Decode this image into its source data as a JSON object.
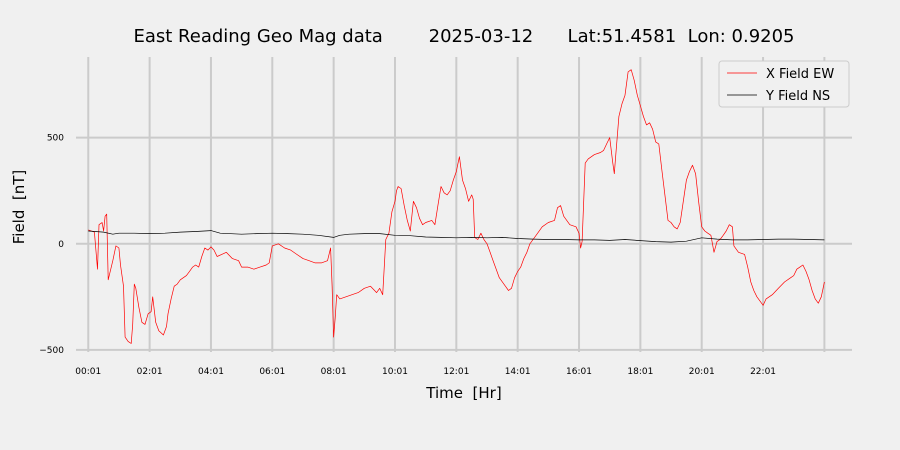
{
  "chart_data": {
    "type": "line",
    "title": "East Reading Geo Mag data        2025-03-12      Lat:51.4581  Lon: 0.9205",
    "xlabel": "Time  [Hr]",
    "ylabel": "Field  [nT]",
    "xlim": [
      -0.4,
      24.9
    ],
    "ylim": [
      -510,
      880
    ],
    "x_unit": "hours since 00:01",
    "xticks": [
      {
        "x": 0,
        "label": "00:01"
      },
      {
        "x": 2,
        "label": "02:01"
      },
      {
        "x": 4,
        "label": "04:01"
      },
      {
        "x": 6,
        "label": "06:01"
      },
      {
        "x": 8,
        "label": "08:01"
      },
      {
        "x": 10,
        "label": "10:01"
      },
      {
        "x": 12,
        "label": "12:01"
      },
      {
        "x": 14,
        "label": "14:01"
      },
      {
        "x": 16,
        "label": "16:01"
      },
      {
        "x": 18,
        "label": "18:01"
      },
      {
        "x": 20,
        "label": "20:01"
      },
      {
        "x": 22,
        "label": "22:01"
      }
    ],
    "extra_gridline_x": [
      24
    ],
    "yticks": [
      {
        "y": 500,
        "label": "500"
      },
      {
        "y": 0,
        "label": "0"
      },
      {
        "y": -500,
        "label": "−500"
      }
    ],
    "grid": true,
    "legend_position": "top-right",
    "series": [
      {
        "name": "X Field EW",
        "color": "#ff0000",
        "points": [
          [
            0.0,
            65
          ],
          [
            0.2,
            55
          ],
          [
            0.3,
            -120
          ],
          [
            0.35,
            90
          ],
          [
            0.45,
            100
          ],
          [
            0.5,
            60
          ],
          [
            0.55,
            130
          ],
          [
            0.6,
            140
          ],
          [
            0.65,
            -170
          ],
          [
            0.8,
            -80
          ],
          [
            0.9,
            -10
          ],
          [
            1.0,
            -20
          ],
          [
            1.05,
            -100
          ],
          [
            1.15,
            -200
          ],
          [
            1.2,
            -440
          ],
          [
            1.3,
            -460
          ],
          [
            1.4,
            -470
          ],
          [
            1.45,
            -380
          ],
          [
            1.5,
            -190
          ],
          [
            1.55,
            -210
          ],
          [
            1.65,
            -300
          ],
          [
            1.75,
            -370
          ],
          [
            1.85,
            -380
          ],
          [
            1.95,
            -330
          ],
          [
            2.05,
            -320
          ],
          [
            2.1,
            -250
          ],
          [
            2.2,
            -370
          ],
          [
            2.3,
            -410
          ],
          [
            2.45,
            -430
          ],
          [
            2.55,
            -390
          ],
          [
            2.6,
            -330
          ],
          [
            2.7,
            -260
          ],
          [
            2.8,
            -200
          ],
          [
            2.9,
            -190
          ],
          [
            3.0,
            -170
          ],
          [
            3.2,
            -150
          ],
          [
            3.3,
            -130
          ],
          [
            3.4,
            -110
          ],
          [
            3.5,
            -100
          ],
          [
            3.6,
            -110
          ],
          [
            3.7,
            -60
          ],
          [
            3.8,
            -20
          ],
          [
            3.9,
            -30
          ],
          [
            4.0,
            -15
          ],
          [
            4.1,
            -30
          ],
          [
            4.2,
            -60
          ],
          [
            4.35,
            -50
          ],
          [
            4.5,
            -40
          ],
          [
            4.7,
            -70
          ],
          [
            4.9,
            -80
          ],
          [
            5.0,
            -110
          ],
          [
            5.2,
            -110
          ],
          [
            5.4,
            -120
          ],
          [
            5.6,
            -110
          ],
          [
            5.8,
            -100
          ],
          [
            5.9,
            -90
          ],
          [
            6.0,
            -10
          ],
          [
            6.2,
            0
          ],
          [
            6.4,
            -20
          ],
          [
            6.6,
            -30
          ],
          [
            6.8,
            -50
          ],
          [
            7.0,
            -70
          ],
          [
            7.2,
            -80
          ],
          [
            7.4,
            -90
          ],
          [
            7.6,
            -90
          ],
          [
            7.8,
            -80
          ],
          [
            7.9,
            -20
          ],
          [
            7.95,
            -200
          ],
          [
            8.0,
            -440
          ],
          [
            8.05,
            -350
          ],
          [
            8.1,
            -240
          ],
          [
            8.2,
            -260
          ],
          [
            8.4,
            -250
          ],
          [
            8.6,
            -240
          ],
          [
            8.8,
            -230
          ],
          [
            9.0,
            -210
          ],
          [
            9.2,
            -200
          ],
          [
            9.4,
            -230
          ],
          [
            9.5,
            -210
          ],
          [
            9.6,
            -240
          ],
          [
            9.7,
            20
          ],
          [
            9.8,
            50
          ],
          [
            9.9,
            150
          ],
          [
            10.0,
            200
          ],
          [
            10.05,
            250
          ],
          [
            10.1,
            270
          ],
          [
            10.2,
            260
          ],
          [
            10.3,
            180
          ],
          [
            10.4,
            110
          ],
          [
            10.5,
            60
          ],
          [
            10.6,
            200
          ],
          [
            10.7,
            170
          ],
          [
            10.8,
            120
          ],
          [
            10.9,
            90
          ],
          [
            11.0,
            100
          ],
          [
            11.2,
            110
          ],
          [
            11.3,
            90
          ],
          [
            11.4,
            180
          ],
          [
            11.5,
            270
          ],
          [
            11.6,
            240
          ],
          [
            11.7,
            230
          ],
          [
            11.8,
            250
          ],
          [
            11.9,
            300
          ],
          [
            12.0,
            340
          ],
          [
            12.1,
            410
          ],
          [
            12.2,
            300
          ],
          [
            12.3,
            260
          ],
          [
            12.4,
            200
          ],
          [
            12.5,
            230
          ],
          [
            12.55,
            210
          ],
          [
            12.6,
            30
          ],
          [
            12.7,
            20
          ],
          [
            12.8,
            50
          ],
          [
            12.9,
            20
          ],
          [
            13.0,
            0
          ],
          [
            13.1,
            -40
          ],
          [
            13.2,
            -80
          ],
          [
            13.4,
            -160
          ],
          [
            13.6,
            -200
          ],
          [
            13.7,
            -220
          ],
          [
            13.8,
            -210
          ],
          [
            13.9,
            -160
          ],
          [
            14.0,
            -130
          ],
          [
            14.1,
            -110
          ],
          [
            14.2,
            -70
          ],
          [
            14.3,
            -40
          ],
          [
            14.4,
            0
          ],
          [
            14.6,
            40
          ],
          [
            14.8,
            80
          ],
          [
            15.0,
            100
          ],
          [
            15.2,
            110
          ],
          [
            15.3,
            170
          ],
          [
            15.4,
            180
          ],
          [
            15.5,
            130
          ],
          [
            15.7,
            90
          ],
          [
            15.9,
            80
          ],
          [
            16.0,
            50
          ],
          [
            16.05,
            -20
          ],
          [
            16.1,
            10
          ],
          [
            16.2,
            380
          ],
          [
            16.3,
            400
          ],
          [
            16.5,
            420
          ],
          [
            16.7,
            430
          ],
          [
            16.8,
            440
          ],
          [
            16.9,
            470
          ],
          [
            17.0,
            500
          ],
          [
            17.1,
            380
          ],
          [
            17.15,
            330
          ],
          [
            17.2,
            420
          ],
          [
            17.3,
            600
          ],
          [
            17.4,
            660
          ],
          [
            17.5,
            700
          ],
          [
            17.6,
            810
          ],
          [
            17.7,
            820
          ],
          [
            17.8,
            770
          ],
          [
            17.9,
            700
          ],
          [
            18.0,
            650
          ],
          [
            18.1,
            600
          ],
          [
            18.2,
            560
          ],
          [
            18.3,
            570
          ],
          [
            18.4,
            540
          ],
          [
            18.5,
            480
          ],
          [
            18.6,
            470
          ],
          [
            18.7,
            350
          ],
          [
            18.8,
            230
          ],
          [
            18.9,
            110
          ],
          [
            19.0,
            100
          ],
          [
            19.1,
            80
          ],
          [
            19.2,
            70
          ],
          [
            19.3,
            100
          ],
          [
            19.4,
            200
          ],
          [
            19.5,
            300
          ],
          [
            19.6,
            340
          ],
          [
            19.7,
            370
          ],
          [
            19.8,
            330
          ],
          [
            19.9,
            200
          ],
          [
            20.0,
            80
          ],
          [
            20.1,
            60
          ],
          [
            20.2,
            50
          ],
          [
            20.3,
            40
          ],
          [
            20.4,
            -40
          ],
          [
            20.5,
            10
          ],
          [
            20.6,
            20
          ],
          [
            20.7,
            40
          ],
          [
            20.8,
            60
          ],
          [
            20.9,
            90
          ],
          [
            21.0,
            80
          ],
          [
            21.05,
            -10
          ],
          [
            21.2,
            -40
          ],
          [
            21.4,
            -50
          ],
          [
            21.5,
            -110
          ],
          [
            21.6,
            -180
          ],
          [
            21.7,
            -220
          ],
          [
            21.8,
            -250
          ],
          [
            21.9,
            -270
          ],
          [
            22.0,
            -290
          ],
          [
            22.1,
            -260
          ],
          [
            22.3,
            -240
          ],
          [
            22.5,
            -210
          ],
          [
            22.7,
            -180
          ],
          [
            22.9,
            -160
          ],
          [
            23.0,
            -150
          ],
          [
            23.1,
            -120
          ],
          [
            23.2,
            -110
          ],
          [
            23.3,
            -100
          ],
          [
            23.4,
            -130
          ],
          [
            23.5,
            -170
          ],
          [
            23.6,
            -220
          ],
          [
            23.7,
            -260
          ],
          [
            23.8,
            -280
          ],
          [
            23.9,
            -250
          ],
          [
            24.0,
            -180
          ]
        ]
      },
      {
        "name": "Y Field NS",
        "color": "#000000",
        "points": [
          [
            0.0,
            60
          ],
          [
            0.5,
            55
          ],
          [
            0.8,
            45
          ],
          [
            1.0,
            50
          ],
          [
            1.5,
            50
          ],
          [
            2.0,
            48
          ],
          [
            2.5,
            50
          ],
          [
            3.0,
            55
          ],
          [
            3.5,
            58
          ],
          [
            4.0,
            62
          ],
          [
            4.3,
            50
          ],
          [
            5.0,
            45
          ],
          [
            5.5,
            48
          ],
          [
            6.0,
            50
          ],
          [
            6.5,
            48
          ],
          [
            7.0,
            45
          ],
          [
            7.5,
            40
          ],
          [
            8.0,
            30
          ],
          [
            8.2,
            40
          ],
          [
            8.5,
            45
          ],
          [
            9.0,
            48
          ],
          [
            9.5,
            48
          ],
          [
            10.0,
            40
          ],
          [
            10.5,
            38
          ],
          [
            11.0,
            32
          ],
          [
            11.5,
            30
          ],
          [
            12.0,
            28
          ],
          [
            12.5,
            30
          ],
          [
            13.0,
            28
          ],
          [
            13.5,
            30
          ],
          [
            14.0,
            25
          ],
          [
            14.5,
            22
          ],
          [
            15.0,
            20
          ],
          [
            15.5,
            20
          ],
          [
            16.0,
            18
          ],
          [
            16.5,
            18
          ],
          [
            17.0,
            16
          ],
          [
            17.5,
            20
          ],
          [
            18.0,
            15
          ],
          [
            18.5,
            10
          ],
          [
            19.0,
            8
          ],
          [
            19.5,
            12
          ],
          [
            20.0,
            28
          ],
          [
            20.5,
            22
          ],
          [
            21.0,
            18
          ],
          [
            21.5,
            18
          ],
          [
            22.0,
            20
          ],
          [
            22.5,
            22
          ],
          [
            23.0,
            22
          ],
          [
            23.5,
            20
          ],
          [
            24.0,
            18
          ]
        ]
      }
    ]
  }
}
